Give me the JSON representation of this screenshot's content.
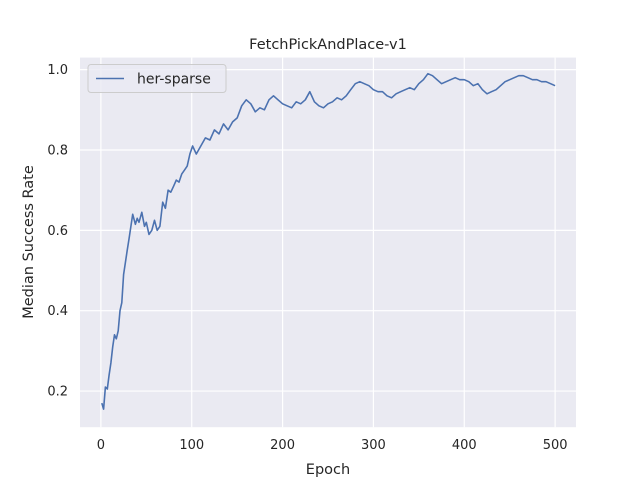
{
  "chart_data": {
    "type": "line",
    "title": "FetchPickAndPlace-v1",
    "xlabel": "Epoch",
    "ylabel": "Median Success Rate",
    "xlim": [
      -23,
      523
    ],
    "ylim": [
      0.11,
      1.03
    ],
    "xticks": [
      0,
      100,
      200,
      300,
      400,
      500
    ],
    "yticks": [
      0.2,
      0.4,
      0.6,
      0.8,
      1.0
    ],
    "xtick_labels": [
      "0",
      "100",
      "200",
      "300",
      "400",
      "500"
    ],
    "ytick_labels": [
      "0.2",
      "0.4",
      "0.6",
      "0.8",
      "1.0"
    ],
    "grid": true,
    "legend_position": "top-left",
    "colors": {
      "background": "#EAEAF2",
      "grid": "#FFFFFF",
      "line": "#4C72B0"
    },
    "series": [
      {
        "name": "her-sparse",
        "x": [
          1,
          3,
          5,
          7,
          9,
          11,
          13,
          15,
          17,
          19,
          21,
          23,
          25,
          27,
          29,
          31,
          35,
          38,
          40,
          42,
          45,
          48,
          50,
          53,
          56,
          59,
          62,
          65,
          68,
          71,
          74,
          77,
          80,
          83,
          86,
          89,
          92,
          95,
          98,
          101,
          105,
          110,
          115,
          120,
          125,
          130,
          135,
          140,
          145,
          150,
          155,
          160,
          165,
          170,
          175,
          180,
          185,
          190,
          195,
          200,
          205,
          210,
          215,
          220,
          225,
          230,
          235,
          240,
          245,
          250,
          255,
          260,
          265,
          270,
          275,
          280,
          285,
          290,
          295,
          300,
          305,
          310,
          315,
          320,
          325,
          330,
          335,
          340,
          345,
          350,
          355,
          360,
          365,
          370,
          375,
          380,
          385,
          390,
          395,
          400,
          405,
          410,
          415,
          420,
          425,
          430,
          435,
          440,
          445,
          450,
          455,
          460,
          465,
          470,
          475,
          480,
          485,
          490,
          495,
          500
        ],
        "values": [
          0.17,
          0.155,
          0.21,
          0.205,
          0.24,
          0.27,
          0.31,
          0.34,
          0.33,
          0.35,
          0.4,
          0.42,
          0.49,
          0.52,
          0.55,
          0.58,
          0.64,
          0.615,
          0.63,
          0.62,
          0.645,
          0.61,
          0.62,
          0.59,
          0.6,
          0.625,
          0.6,
          0.61,
          0.67,
          0.655,
          0.7,
          0.695,
          0.71,
          0.725,
          0.72,
          0.74,
          0.75,
          0.76,
          0.79,
          0.81,
          0.79,
          0.81,
          0.83,
          0.825,
          0.85,
          0.84,
          0.865,
          0.85,
          0.87,
          0.88,
          0.91,
          0.925,
          0.915,
          0.895,
          0.905,
          0.9,
          0.925,
          0.935,
          0.925,
          0.915,
          0.91,
          0.905,
          0.92,
          0.915,
          0.925,
          0.945,
          0.92,
          0.91,
          0.905,
          0.915,
          0.92,
          0.93,
          0.925,
          0.935,
          0.95,
          0.965,
          0.97,
          0.965,
          0.96,
          0.95,
          0.945,
          0.945,
          0.935,
          0.93,
          0.94,
          0.945,
          0.95,
          0.955,
          0.95,
          0.965,
          0.975,
          0.99,
          0.985,
          0.975,
          0.965,
          0.97,
          0.975,
          0.98,
          0.975,
          0.975,
          0.97,
          0.96,
          0.965,
          0.95,
          0.94,
          0.945,
          0.95,
          0.96,
          0.97,
          0.975,
          0.98,
          0.985,
          0.985,
          0.98,
          0.975,
          0.975,
          0.97,
          0.97,
          0.965,
          0.96
        ]
      }
    ]
  }
}
